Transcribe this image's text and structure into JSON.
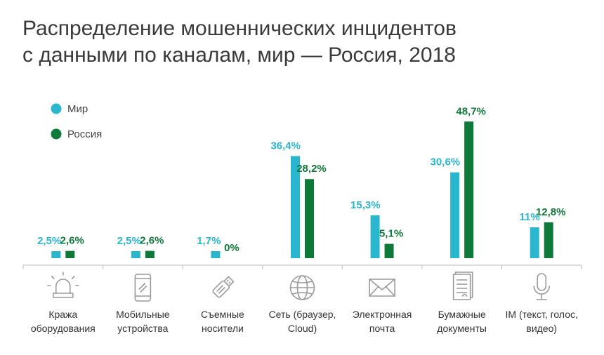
{
  "title_lines": [
    "Распределение мошеннических инцидентов",
    "с данными по каналам, мир — Россия, 2018"
  ],
  "colors": {
    "world": "#2bb6cf",
    "russia": "#0e7a3a",
    "world_text": "#2bb6cf",
    "russia_text": "#0e7a3a",
    "axis": "#c8c8c8"
  },
  "chart_data": {
    "type": "bar",
    "title": "Распределение мошеннических инцидентов с данными по каналам, мир — Россия, 2018",
    "legend": [
      {
        "name": "Мир",
        "color": "#2bb6cf"
      },
      {
        "name": "Россия",
        "color": "#0e7a3a"
      }
    ],
    "categories": [
      {
        "lines": [
          "Кража",
          "оборудования"
        ],
        "icon": "siren-icon"
      },
      {
        "lines": [
          "Мобильные",
          "устройства"
        ],
        "icon": "smartphone-icon"
      },
      {
        "lines": [
          "Съемные",
          "носители"
        ],
        "icon": "usb-drive-icon"
      },
      {
        "lines": [
          "Сеть (браузер,",
          "Cloud)"
        ],
        "icon": "globe-icon"
      },
      {
        "lines": [
          "Электронная",
          "почта"
        ],
        "icon": "envelope-icon"
      },
      {
        "lines": [
          "Бумажные",
          "документы"
        ],
        "icon": "document-icon"
      },
      {
        "lines": [
          "IM (текст, голос,",
          "видео)"
        ],
        "icon": "microphone-icon"
      }
    ],
    "series": [
      {
        "name": "Мир",
        "values": [
          2.5,
          2.5,
          1.7,
          36.4,
          15.3,
          30.6,
          11
        ],
        "labels": [
          "2,5%",
          "2,5%",
          "1,7%",
          "36,4%",
          "15,3%",
          "30,6%",
          "11%"
        ]
      },
      {
        "name": "Россия",
        "values": [
          2.6,
          2.6,
          0,
          28.2,
          5.1,
          48.7,
          12.8
        ],
        "labels": [
          "2,6%",
          "2,6%",
          "0%",
          "28,2%",
          "5,1%",
          "48,7%",
          "12,8%"
        ]
      }
    ],
    "ylim": [
      0,
      50
    ],
    "xlabel": "",
    "ylabel": ""
  }
}
